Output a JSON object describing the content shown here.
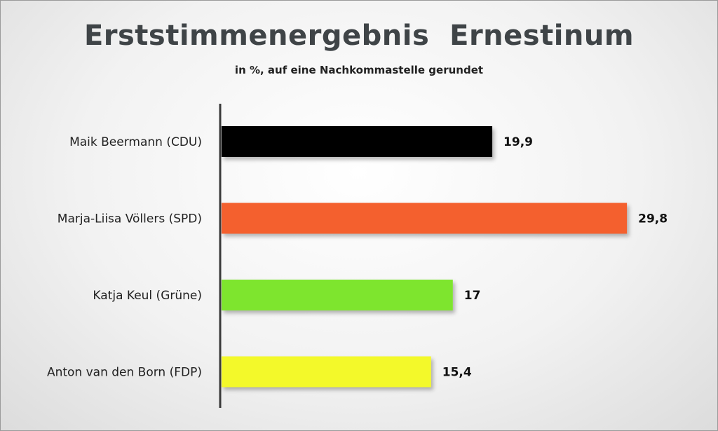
{
  "chart_data": {
    "type": "bar",
    "orientation": "horizontal",
    "title": "Erststimmenergebnis  Ernestinum",
    "subtitle": "in %, auf eine Nachkommastelle gerundet",
    "categories": [
      "Maik Beermann (CDU)",
      "Marja-Liisa Völlers (SPD)",
      "Katja Keul (Grüne)",
      "Anton van den Born (FDP)"
    ],
    "values": [
      19.9,
      29.8,
      17,
      15.4
    ],
    "value_labels": [
      "19,9",
      "29,8",
      "17",
      "15,4"
    ],
    "colors": [
      "#000000",
      "#f4602f",
      "#7ee52d",
      "#f3f92a"
    ],
    "xlim": [
      0,
      30
    ],
    "grid": false,
    "legend": "none"
  }
}
